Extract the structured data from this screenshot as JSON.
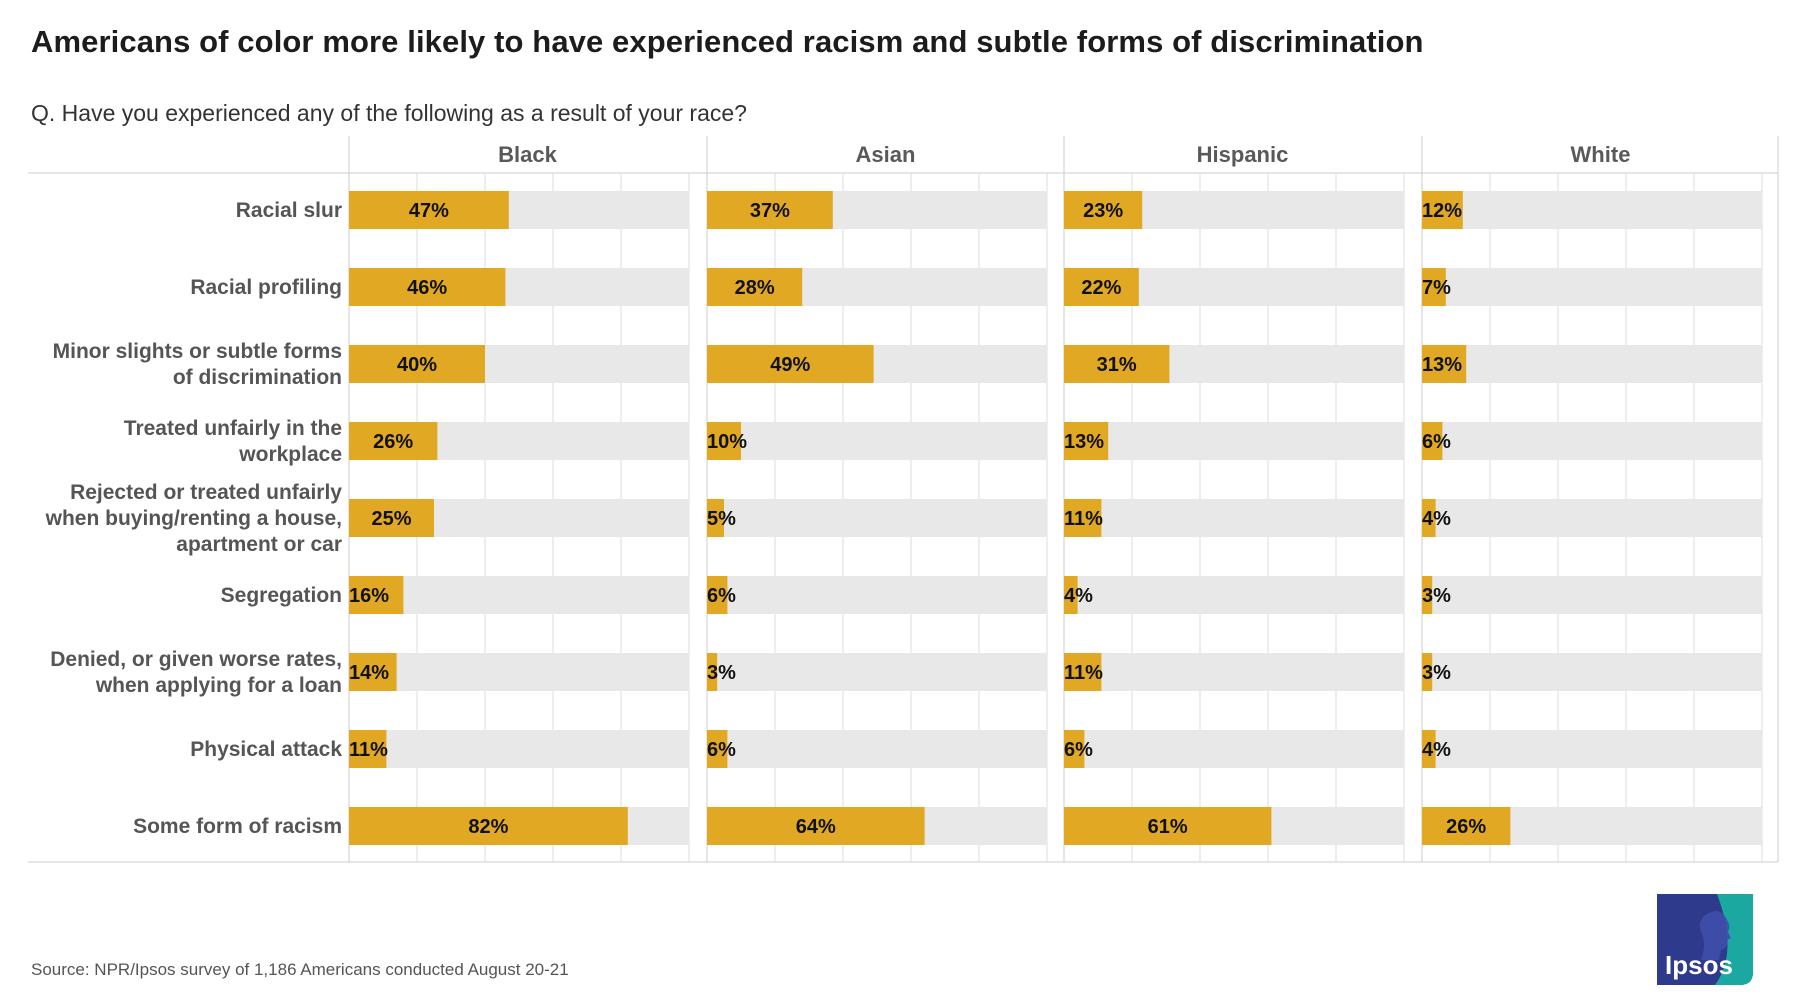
{
  "title": "Americans of color more likely to have experienced racism and subtle forms of discrimination",
  "subtitle": "Q. Have you experienced any of the following as a result of your race?",
  "source": "Source: NPR/Ipsos survey of 1,186 Americans conducted August 20-21",
  "logo_text": "Ipsos",
  "colors": {
    "bar": "#E1A823",
    "track": "#E8E8E8",
    "grid": "#DDDDDD",
    "logo": "#2E3A8C",
    "logo_accent": "#1BA8A0"
  },
  "chart_data": {
    "type": "bar",
    "orientation": "horizontal",
    "xlim": [
      0,
      100
    ],
    "categories": [
      [
        "Racial slur"
      ],
      [
        "Racial profiling"
      ],
      [
        "Minor slights or subtle forms",
        "of discrimination"
      ],
      [
        "Treated unfairly in the",
        "workplace"
      ],
      [
        "Rejected or treated unfairly",
        "when buying/renting a house,",
        "apartment or car"
      ],
      [
        "Segregation"
      ],
      [
        "Denied, or given worse rates,",
        "when applying for a loan"
      ],
      [
        "Physical attack"
      ],
      [
        "Some form of racism"
      ]
    ],
    "series": [
      {
        "name": "Black",
        "values": [
          47,
          46,
          40,
          26,
          25,
          16,
          14,
          11,
          82
        ],
        "labels": [
          "47%",
          "46%",
          "40%",
          "26%",
          "25%",
          "16%",
          "14%",
          "11%",
          "82%"
        ]
      },
      {
        "name": "Asian",
        "values": [
          37,
          28,
          49,
          10,
          5,
          6,
          3,
          6,
          64
        ],
        "labels": [
          "37%",
          "28%",
          "49%",
          "10%",
          "5%",
          "6%",
          "3%",
          "6%",
          "64%"
        ]
      },
      {
        "name": "Hispanic",
        "values": [
          23,
          22,
          31,
          13,
          11,
          4,
          11,
          6,
          61
        ],
        "labels": [
          "23%",
          "22%",
          "31%",
          "13%",
          "11%",
          "4%",
          "11%",
          "6%",
          "61%"
        ]
      },
      {
        "name": "White",
        "values": [
          12,
          7,
          13,
          6,
          4,
          3,
          3,
          4,
          26
        ],
        "labels": [
          "12%",
          "7%",
          "13%",
          "6%",
          "4%",
          "3%",
          "3%",
          "4%",
          "26%"
        ]
      }
    ]
  }
}
